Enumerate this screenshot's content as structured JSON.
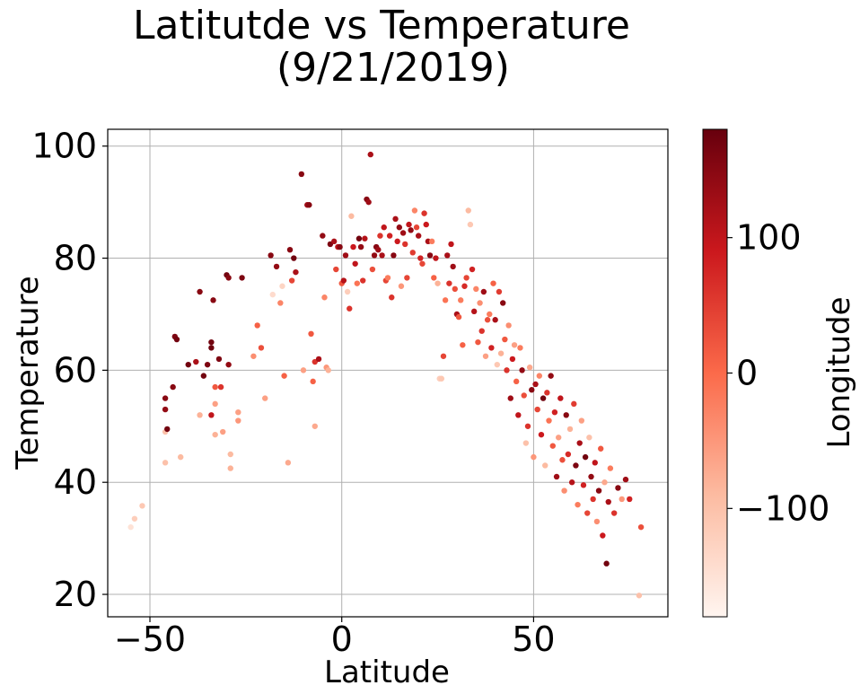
{
  "chart_data": {
    "type": "scatter",
    "title": [
      "Latitutde vs Temperature",
      "(9/21/2019)"
    ],
    "xlabel": "Latitude",
    "ylabel": "Temperature",
    "xlim": [
      -61,
      85
    ],
    "ylim": [
      16,
      103
    ],
    "xticks": [
      -50,
      0,
      50
    ],
    "xtick_labels": [
      "−50",
      "0",
      "50"
    ],
    "yticks": [
      20,
      40,
      60,
      80,
      100
    ],
    "ytick_labels": [
      "20",
      "40",
      "60",
      "80",
      "100"
    ],
    "grid": true,
    "colorbar": {
      "label": "Longitude",
      "cmap": "Reds",
      "range": [
        -180,
        180
      ],
      "ticks": [
        -100,
        0,
        100
      ],
      "tick_labels": [
        "−100",
        "0",
        "100"
      ],
      "colors": [
        "#fff5f0",
        "#fcbba1",
        "#fb6a4a",
        "#cb181d",
        "#67000d"
      ]
    },
    "points": [
      {
        "x": -55,
        "y": 32,
        "c": -150
      },
      {
        "x": -54,
        "y": 33.5,
        "c": -120
      },
      {
        "x": -52,
        "y": 35.8,
        "c": -110
      },
      {
        "x": -46,
        "y": 43.5,
        "c": -100
      },
      {
        "x": -46,
        "y": 49,
        "c": -100
      },
      {
        "x": -46,
        "y": 53,
        "c": 140
      },
      {
        "x": -46,
        "y": 55,
        "c": 150
      },
      {
        "x": -45.5,
        "y": 49.5,
        "c": 170
      },
      {
        "x": -44,
        "y": 57,
        "c": 150
      },
      {
        "x": -43.5,
        "y": 66,
        "c": 160
      },
      {
        "x": -43,
        "y": 65.5,
        "c": 170
      },
      {
        "x": -42,
        "y": 44.5,
        "c": -90
      },
      {
        "x": -40,
        "y": 61,
        "c": 170
      },
      {
        "x": -38,
        "y": 61.5,
        "c": 120
      },
      {
        "x": -37,
        "y": 74,
        "c": 150
      },
      {
        "x": -37,
        "y": 52,
        "c": -80
      },
      {
        "x": -36,
        "y": 59,
        "c": 170
      },
      {
        "x": -35,
        "y": 61,
        "c": 160
      },
      {
        "x": -34,
        "y": 65,
        "c": 170
      },
      {
        "x": -34,
        "y": 64,
        "c": 175
      },
      {
        "x": -34,
        "y": 52,
        "c": 100
      },
      {
        "x": -33.5,
        "y": 72.5,
        "c": 150
      },
      {
        "x": -33,
        "y": 57,
        "c": 20
      },
      {
        "x": -33,
        "y": 48.5,
        "c": -80
      },
      {
        "x": -33,
        "y": 54,
        "c": -60
      },
      {
        "x": -32,
        "y": 62,
        "c": 160
      },
      {
        "x": -31.5,
        "y": 57,
        "c": 60
      },
      {
        "x": -31,
        "y": 49,
        "c": -60
      },
      {
        "x": -30,
        "y": 77,
        "c": 170
      },
      {
        "x": -29.5,
        "y": 76.5,
        "c": 150
      },
      {
        "x": -29.5,
        "y": 61,
        "c": 140
      },
      {
        "x": -29,
        "y": 42.5,
        "c": -80
      },
      {
        "x": -29,
        "y": 45,
        "c": -90
      },
      {
        "x": -27,
        "y": 52.5,
        "c": -60
      },
      {
        "x": -27,
        "y": 51,
        "c": -50
      },
      {
        "x": -26,
        "y": 76.5,
        "c": 160
      },
      {
        "x": -23,
        "y": 62.5,
        "c": -40
      },
      {
        "x": -22,
        "y": 68,
        "c": 10
      },
      {
        "x": -21,
        "y": 64,
        "c": 30
      },
      {
        "x": -20,
        "y": 55,
        "c": -60
      },
      {
        "x": -18.5,
        "y": 80.5,
        "c": 150
      },
      {
        "x": -18,
        "y": 73.5,
        "c": -140
      },
      {
        "x": -17,
        "y": 78.5,
        "c": 140
      },
      {
        "x": -16,
        "y": 72,
        "c": -30
      },
      {
        "x": -15.5,
        "y": 75,
        "c": -130
      },
      {
        "x": -15,
        "y": 59,
        "c": 10
      },
      {
        "x": -14,
        "y": 43.5,
        "c": -70
      },
      {
        "x": -13.5,
        "y": 81.5,
        "c": 150
      },
      {
        "x": -13,
        "y": 76,
        "c": 40
      },
      {
        "x": -12.5,
        "y": 80,
        "c": 170
      },
      {
        "x": -12,
        "y": 77.5,
        "c": 120
      },
      {
        "x": -10.5,
        "y": 95,
        "c": 150
      },
      {
        "x": -10,
        "y": 60,
        "c": -60
      },
      {
        "x": -9,
        "y": 89.5,
        "c": 130
      },
      {
        "x": -8.5,
        "y": 89.5,
        "c": 150
      },
      {
        "x": -8,
        "y": 66.5,
        "c": 20
      },
      {
        "x": -7.5,
        "y": 58,
        "c": 10
      },
      {
        "x": -7,
        "y": 61.5,
        "c": 60
      },
      {
        "x": -7,
        "y": 50,
        "c": -70
      },
      {
        "x": -6,
        "y": 62,
        "c": 120
      },
      {
        "x": -5,
        "y": 84,
        "c": 140
      },
      {
        "x": -4.5,
        "y": 73,
        "c": -30
      },
      {
        "x": -4,
        "y": 60.5,
        "c": -50
      },
      {
        "x": -3.5,
        "y": 60,
        "c": -80
      },
      {
        "x": -3,
        "y": 82.5,
        "c": 160
      },
      {
        "x": -2,
        "y": 83,
        "c": 120
      },
      {
        "x": -1.5,
        "y": 78,
        "c": 40
      },
      {
        "x": -1,
        "y": 82,
        "c": 100
      },
      {
        "x": -0.5,
        "y": 82,
        "c": 150
      },
      {
        "x": 0,
        "y": 75.5,
        "c": 20
      },
      {
        "x": 0.5,
        "y": 76,
        "c": 110
      },
      {
        "x": 1,
        "y": 80.5,
        "c": 130
      },
      {
        "x": 1.5,
        "y": 74,
        "c": -120
      },
      {
        "x": 2,
        "y": 71,
        "c": 60
      },
      {
        "x": 2.5,
        "y": 87.5,
        "c": -90
      },
      {
        "x": 3,
        "y": 82,
        "c": 90
      },
      {
        "x": 3.5,
        "y": 79,
        "c": 100
      },
      {
        "x": 4,
        "y": 75.5,
        "c": -10
      },
      {
        "x": 4.5,
        "y": 83.5,
        "c": 170
      },
      {
        "x": 5,
        "y": 82,
        "c": 140
      },
      {
        "x": 5.5,
        "y": 76,
        "c": 60
      },
      {
        "x": 6,
        "y": 83.5,
        "c": 110
      },
      {
        "x": 6.5,
        "y": 90.5,
        "c": 150
      },
      {
        "x": 7,
        "y": 90,
        "c": 130
      },
      {
        "x": 7.5,
        "y": 98.5,
        "c": 120
      },
      {
        "x": 8,
        "y": 78,
        "c": 30
      },
      {
        "x": 8.5,
        "y": 80.5,
        "c": 140
      },
      {
        "x": 9,
        "y": 82,
        "c": 150
      },
      {
        "x": 9.5,
        "y": 81.5,
        "c": 130
      },
      {
        "x": 10,
        "y": 84,
        "c": 60
      },
      {
        "x": 10.5,
        "y": 80.5,
        "c": 120
      },
      {
        "x": 11,
        "y": 85.5,
        "c": 100
      },
      {
        "x": 11.5,
        "y": 76,
        "c": 40
      },
      {
        "x": 12,
        "y": 76.5,
        "c": -20
      },
      {
        "x": 12.5,
        "y": 84,
        "c": 80
      },
      {
        "x": 13,
        "y": 73,
        "c": 60
      },
      {
        "x": 13.5,
        "y": 80.5,
        "c": 150
      },
      {
        "x": 14,
        "y": 87,
        "c": 120
      },
      {
        "x": 14.5,
        "y": 83,
        "c": 90
      },
      {
        "x": 15,
        "y": 85.5,
        "c": 140
      },
      {
        "x": 15.5,
        "y": 75,
        "c": -50
      },
      {
        "x": 16,
        "y": 84.5,
        "c": 130
      },
      {
        "x": 16.5,
        "y": 82.5,
        "c": 60
      },
      {
        "x": 17,
        "y": 76.5,
        "c": 40
      },
      {
        "x": 17.5,
        "y": 86,
        "c": 100
      },
      {
        "x": 18,
        "y": 85,
        "c": 140
      },
      {
        "x": 18.5,
        "y": 81,
        "c": 50
      },
      {
        "x": 19,
        "y": 88.5,
        "c": -30
      },
      {
        "x": 19.5,
        "y": 85.5,
        "c": 40
      },
      {
        "x": 20,
        "y": 84,
        "c": 120
      },
      {
        "x": 20.5,
        "y": 80,
        "c": 80
      },
      {
        "x": 21,
        "y": 79,
        "c": 40
      },
      {
        "x": 21.5,
        "y": 88,
        "c": 60
      },
      {
        "x": 22,
        "y": 86,
        "c": 90
      },
      {
        "x": 22.5,
        "y": 83,
        "c": 120
      },
      {
        "x": 23,
        "y": 80.5,
        "c": 150
      },
      {
        "x": 23.5,
        "y": 83,
        "c": -20
      },
      {
        "x": 24,
        "y": 76.5,
        "c": 10
      },
      {
        "x": 24.5,
        "y": 80,
        "c": 100
      },
      {
        "x": 25,
        "y": 75.5,
        "c": -80
      },
      {
        "x": 25.5,
        "y": 58.5,
        "c": -120
      },
      {
        "x": 26,
        "y": 58.5,
        "c": -110
      },
      {
        "x": 26.5,
        "y": 62.5,
        "c": 40
      },
      {
        "x": 27,
        "y": 72.5,
        "c": -10
      },
      {
        "x": 27.5,
        "y": 80.5,
        "c": 120
      },
      {
        "x": 28,
        "y": 75.5,
        "c": 60
      },
      {
        "x": 28.5,
        "y": 82.5,
        "c": 100
      },
      {
        "x": 29,
        "y": 78.5,
        "c": 130
      },
      {
        "x": 29.5,
        "y": 74.5,
        "c": 30
      },
      {
        "x": 30,
        "y": 70,
        "c": 120
      },
      {
        "x": 30.5,
        "y": 69.5,
        "c": 20
      },
      {
        "x": 31,
        "y": 72.5,
        "c": -20
      },
      {
        "x": 31.5,
        "y": 64.5,
        "c": 10
      },
      {
        "x": 32,
        "y": 75,
        "c": 70
      },
      {
        "x": 32.5,
        "y": 76.5,
        "c": 40
      },
      {
        "x": 33,
        "y": 88.5,
        "c": -90
      },
      {
        "x": 33.5,
        "y": 86,
        "c": -110
      },
      {
        "x": 34,
        "y": 78,
        "c": 80
      },
      {
        "x": 34.5,
        "y": 70.5,
        "c": 110
      },
      {
        "x": 35,
        "y": 74.5,
        "c": -30
      },
      {
        "x": 35.5,
        "y": 65,
        "c": 20
      },
      {
        "x": 36,
        "y": 72,
        "c": -40
      },
      {
        "x": 36.5,
        "y": 67,
        "c": 60
      },
      {
        "x": 37,
        "y": 74,
        "c": 130
      },
      {
        "x": 37.5,
        "y": 62.5,
        "c": -60
      },
      {
        "x": 38,
        "y": 69,
        "c": 30
      },
      {
        "x": 38.5,
        "y": 70,
        "c": -20
      },
      {
        "x": 39,
        "y": 64,
        "c": 80
      },
      {
        "x": 39.5,
        "y": 75.5,
        "c": 10
      },
      {
        "x": 40,
        "y": 69,
        "c": 120
      },
      {
        "x": 40.5,
        "y": 61,
        "c": -110
      },
      {
        "x": 41,
        "y": 74,
        "c": 50
      },
      {
        "x": 41.5,
        "y": 63,
        "c": -80
      },
      {
        "x": 42,
        "y": 72,
        "c": 150
      },
      {
        "x": 42.5,
        "y": 65.5,
        "c": 20
      },
      {
        "x": 43,
        "y": 60,
        "c": 60
      },
      {
        "x": 43.5,
        "y": 68,
        "c": -40
      },
      {
        "x": 44,
        "y": 55,
        "c": 130
      },
      {
        "x": 44.5,
        "y": 62,
        "c": 90
      },
      {
        "x": 45,
        "y": 64.5,
        "c": -60
      },
      {
        "x": 45.5,
        "y": 58,
        "c": 10
      },
      {
        "x": 46,
        "y": 52,
        "c": 100
      },
      {
        "x": 46.5,
        "y": 64,
        "c": -20
      },
      {
        "x": 47,
        "y": 60,
        "c": 140
      },
      {
        "x": 47.5,
        "y": 55.5,
        "c": 30
      },
      {
        "x": 48,
        "y": 47,
        "c": -100
      },
      {
        "x": 48.5,
        "y": 50,
        "c": 60
      },
      {
        "x": 49,
        "y": 60.5,
        "c": -70
      },
      {
        "x": 49.5,
        "y": 56.5,
        "c": 150
      },
      {
        "x": 50,
        "y": 44.5,
        "c": -50
      },
      {
        "x": 50.5,
        "y": 57.5,
        "c": 120
      },
      {
        "x": 51,
        "y": 53,
        "c": 40
      },
      {
        "x": 51.5,
        "y": 59,
        "c": -30
      },
      {
        "x": 52,
        "y": 48.5,
        "c": 90
      },
      {
        "x": 52.5,
        "y": 55,
        "c": 170
      },
      {
        "x": 53,
        "y": 43,
        "c": -90
      },
      {
        "x": 53.5,
        "y": 56,
        "c": 60
      },
      {
        "x": 54,
        "y": 51,
        "c": -10
      },
      {
        "x": 54.5,
        "y": 59,
        "c": 140
      },
      {
        "x": 55,
        "y": 46.5,
        "c": 20
      },
      {
        "x": 55.5,
        "y": 52.5,
        "c": 80
      },
      {
        "x": 56,
        "y": 41,
        "c": 130
      },
      {
        "x": 56.5,
        "y": 48,
        "c": -60
      },
      {
        "x": 57,
        "y": 55,
        "c": 100
      },
      {
        "x": 57.5,
        "y": 44,
        "c": 30
      },
      {
        "x": 58,
        "y": 38.5,
        "c": -40
      },
      {
        "x": 58.5,
        "y": 52,
        "c": 150
      },
      {
        "x": 59,
        "y": 45,
        "c": 70
      },
      {
        "x": 59.5,
        "y": 49.5,
        "c": -80
      },
      {
        "x": 60,
        "y": 40,
        "c": 110
      },
      {
        "x": 60.5,
        "y": 54,
        "c": 50
      },
      {
        "x": 61,
        "y": 43,
        "c": 160
      },
      {
        "x": 61.5,
        "y": 36,
        "c": -20
      },
      {
        "x": 62,
        "y": 47,
        "c": 120
      },
      {
        "x": 62.5,
        "y": 51,
        "c": -60
      },
      {
        "x": 63,
        "y": 39.5,
        "c": 80
      },
      {
        "x": 63.5,
        "y": 44.5,
        "c": 170
      },
      {
        "x": 64,
        "y": 34.5,
        "c": 40
      },
      {
        "x": 64.5,
        "y": 48,
        "c": -100
      },
      {
        "x": 65,
        "y": 41,
        "c": 140
      },
      {
        "x": 65.5,
        "y": 37,
        "c": 60
      },
      {
        "x": 66,
        "y": 43.5,
        "c": 100
      },
      {
        "x": 66.5,
        "y": 33,
        "c": -40
      },
      {
        "x": 67,
        "y": 38.5,
        "c": 150
      },
      {
        "x": 67.5,
        "y": 46,
        "c": 20
      },
      {
        "x": 68,
        "y": 30.5,
        "c": 90
      },
      {
        "x": 68.5,
        "y": 40,
        "c": -70
      },
      {
        "x": 69,
        "y": 25.5,
        "c": 170
      },
      {
        "x": 69.5,
        "y": 36.5,
        "c": 120
      },
      {
        "x": 70,
        "y": 42.5,
        "c": -20
      },
      {
        "x": 71,
        "y": 34.5,
        "c": 60
      },
      {
        "x": 72,
        "y": 39,
        "c": 150
      },
      {
        "x": 73,
        "y": 37,
        "c": -50
      },
      {
        "x": 74,
        "y": 40.5,
        "c": 130
      },
      {
        "x": 75,
        "y": 37,
        "c": 80
      },
      {
        "x": 77.5,
        "y": 19.8,
        "c": -100
      },
      {
        "x": 78,
        "y": 32,
        "c": 30
      }
    ]
  }
}
